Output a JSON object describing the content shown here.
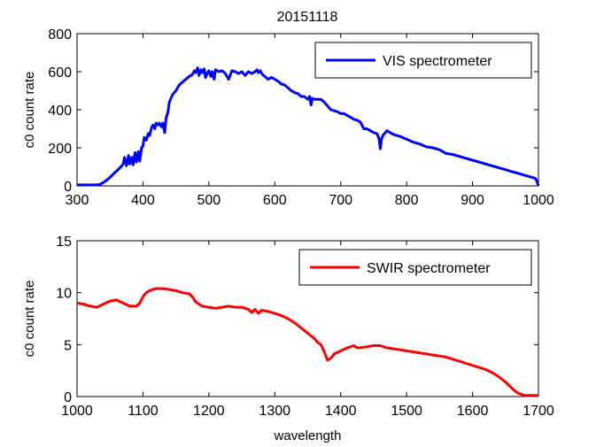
{
  "figure": {
    "title": "20151118"
  },
  "chart_data": [
    {
      "type": "line",
      "title": "20151118",
      "xlabel": "",
      "ylabel": "c0 count rate",
      "xlim": [
        300,
        1000
      ],
      "ylim": [
        0,
        800
      ],
      "xticks": [
        300,
        400,
        500,
        600,
        700,
        800,
        900,
        1000
      ],
      "yticks": [
        0,
        200,
        400,
        600,
        800
      ],
      "grid": false,
      "legend_position": "top-right",
      "series": [
        {
          "name": "VIS spectrometer",
          "color": "#0000ff",
          "x": [
            300,
            330,
            335,
            340,
            345,
            350,
            355,
            360,
            365,
            370,
            372,
            375,
            378,
            380,
            383,
            385,
            388,
            390,
            393,
            395,
            398,
            400,
            402,
            405,
            408,
            410,
            413,
            415,
            418,
            420,
            423,
            425,
            428,
            430,
            433,
            435,
            438,
            440,
            445,
            450,
            455,
            460,
            465,
            470,
            475,
            478,
            480,
            483,
            485,
            488,
            490,
            493,
            495,
            498,
            500,
            503,
            505,
            508,
            510,
            515,
            520,
            525,
            530,
            535,
            540,
            545,
            550,
            555,
            560,
            565,
            570,
            573,
            575,
            578,
            580,
            583,
            585,
            590,
            595,
            600,
            605,
            610,
            615,
            620,
            625,
            630,
            635,
            640,
            645,
            650,
            653,
            655,
            657,
            660,
            665,
            670,
            675,
            680,
            685,
            690,
            695,
            700,
            705,
            710,
            715,
            720,
            725,
            730,
            735,
            740,
            745,
            750,
            755,
            758,
            760,
            762,
            765,
            768,
            770,
            775,
            780,
            785,
            790,
            800,
            810,
            820,
            830,
            840,
            850,
            860,
            870,
            880,
            890,
            900,
            910,
            920,
            930,
            940,
            950,
            960,
            970,
            980,
            990,
            995,
            997,
            1000
          ],
          "y": [
            5,
            5,
            8,
            18,
            30,
            45,
            62,
            78,
            95,
            115,
            150,
            105,
            160,
            115,
            150,
            110,
            175,
            125,
            180,
            130,
            200,
            210,
            255,
            240,
            275,
            265,
            305,
            320,
            300,
            330,
            320,
            330,
            310,
            330,
            280,
            355,
            390,
            440,
            480,
            500,
            530,
            545,
            560,
            575,
            585,
            605,
            595,
            620,
            580,
            610,
            595,
            615,
            570,
            595,
            605,
            575,
            600,
            560,
            610,
            600,
            605,
            590,
            560,
            605,
            600,
            590,
            600,
            580,
            600,
            590,
            600,
            610,
            595,
            605,
            590,
            580,
            575,
            560,
            570,
            560,
            550,
            535,
            530,
            515,
            500,
            490,
            485,
            470,
            470,
            455,
            470,
            425,
            460,
            455,
            455,
            455,
            440,
            420,
            400,
            395,
            390,
            380,
            380,
            370,
            360,
            350,
            345,
            335,
            300,
            300,
            290,
            280,
            275,
            250,
            195,
            250,
            270,
            280,
            290,
            280,
            270,
            265,
            260,
            245,
            230,
            220,
            205,
            200,
            190,
            170,
            165,
            155,
            145,
            135,
            125,
            115,
            105,
            95,
            85,
            75,
            65,
            55,
            45,
            40,
            30,
            0
          ]
        }
      ]
    },
    {
      "type": "line",
      "title": "",
      "xlabel": "wavelength",
      "ylabel": "c0 count rate",
      "xlim": [
        1000,
        1700
      ],
      "ylim": [
        0,
        15
      ],
      "xticks": [
        1000,
        1100,
        1200,
        1300,
        1400,
        1500,
        1600,
        1700
      ],
      "yticks": [
        0,
        5,
        10,
        15
      ],
      "grid": false,
      "legend_position": "top-right",
      "series": [
        {
          "name": "SWIR spectrometer",
          "color": "#ff0000",
          "x": [
            1000,
            1010,
            1020,
            1030,
            1040,
            1050,
            1060,
            1070,
            1080,
            1090,
            1095,
            1100,
            1105,
            1110,
            1115,
            1120,
            1130,
            1140,
            1150,
            1160,
            1170,
            1175,
            1180,
            1190,
            1200,
            1210,
            1220,
            1230,
            1240,
            1250,
            1260,
            1265,
            1270,
            1275,
            1280,
            1290,
            1300,
            1310,
            1320,
            1330,
            1340,
            1350,
            1360,
            1365,
            1370,
            1375,
            1380,
            1385,
            1390,
            1400,
            1410,
            1420,
            1425,
            1430,
            1440,
            1450,
            1460,
            1470,
            1480,
            1490,
            1500,
            1510,
            1520,
            1530,
            1540,
            1550,
            1560,
            1570,
            1580,
            1590,
            1600,
            1610,
            1620,
            1630,
            1640,
            1650,
            1660,
            1665,
            1670,
            1675,
            1680,
            1690,
            1700
          ],
          "y": [
            9.0,
            8.9,
            8.7,
            8.6,
            8.9,
            9.2,
            9.3,
            9.0,
            8.7,
            8.7,
            9.0,
            9.6,
            10.0,
            10.2,
            10.3,
            10.4,
            10.4,
            10.3,
            10.2,
            10.0,
            9.9,
            9.6,
            9.1,
            8.7,
            8.6,
            8.5,
            8.6,
            8.7,
            8.6,
            8.6,
            8.4,
            8.1,
            8.4,
            8.0,
            8.3,
            8.2,
            8.0,
            7.8,
            7.5,
            7.1,
            6.6,
            6.1,
            5.6,
            5.2,
            5.0,
            4.3,
            3.5,
            3.7,
            4.1,
            4.4,
            4.7,
            4.9,
            4.7,
            4.7,
            4.8,
            4.9,
            4.9,
            4.7,
            4.6,
            4.5,
            4.4,
            4.3,
            4.2,
            4.1,
            4.0,
            3.9,
            3.8,
            3.6,
            3.4,
            3.2,
            3.0,
            2.8,
            2.6,
            2.3,
            1.9,
            1.4,
            0.8,
            0.5,
            0.3,
            0.2,
            0.1,
            0.1,
            0.1
          ]
        }
      ]
    }
  ]
}
